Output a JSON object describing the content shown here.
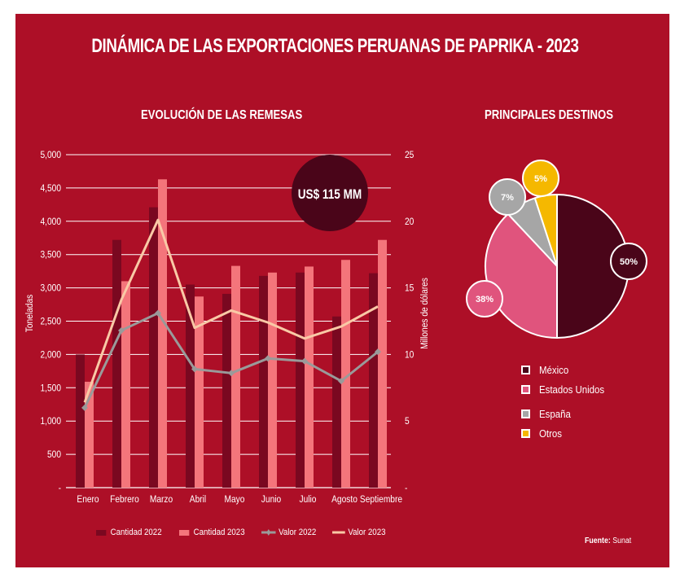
{
  "title": "DINÁMICA DE LAS EXPORTACIONES PERUANAS DE PAPRIKA - 2023",
  "colors": {
    "background": "#ad0f27",
    "cantidad_2022": "#7a0820",
    "cantidad_2023": "#f4757b",
    "valor_2022": "#9a9a9a",
    "valor_2023": "#f9c9a6",
    "badge": "#4a0519",
    "mexico": "#4a0519",
    "estados_unidos": "#e0547d",
    "espana": "#a6a6a6",
    "otros": "#f5b800"
  },
  "badge": {
    "text": "US$ 115 MM"
  },
  "source": {
    "label": "Fuente:",
    "value": "Sunat"
  },
  "chart_data": [
    {
      "type": "bar",
      "title": "EVOLUCIÓN DE LAS REMESAS",
      "xlabel": "",
      "ylabel": "Toneladas",
      "y2label": "Millones de dólares",
      "categories": [
        "Enero",
        "Febrero",
        "Marzo",
        "Abril",
        "Mayo",
        "Junio",
        "Julio",
        "Agosto",
        "Septiembre"
      ],
      "ylim": [
        0,
        5000
      ],
      "y2lim": [
        0,
        25
      ],
      "yticks": [
        "-",
        "500",
        "1,000",
        "1,500",
        "2,000",
        "2,500",
        "3,000",
        "3,500",
        "4,000",
        "4,500",
        "5,000"
      ],
      "y2ticks": [
        "-",
        "5",
        "10",
        "15",
        "20",
        "25"
      ],
      "grid": true,
      "legend_position": "bottom",
      "series": [
        {
          "name": "Cantidad 2022",
          "kind": "bar",
          "axis": "left",
          "values": [
            2000,
            3720,
            4210,
            3050,
            2910,
            3180,
            3230,
            2570,
            3220
          ]
        },
        {
          "name": "Cantidad 2023",
          "kind": "bar",
          "axis": "left",
          "values": [
            1590,
            3100,
            4630,
            2870,
            3330,
            3230,
            3320,
            3420,
            3720
          ]
        },
        {
          "name": "Valor 2022",
          "kind": "line",
          "axis": "right",
          "marker": true,
          "values": [
            6.0,
            11.8,
            13.1,
            8.9,
            8.6,
            9.7,
            9.5,
            8.0,
            10.2
          ]
        },
        {
          "name": "Valor 2023",
          "kind": "line",
          "axis": "right",
          "marker": false,
          "values": [
            6.4,
            14.1,
            20.1,
            12.0,
            13.3,
            12.4,
            11.2,
            12.1,
            13.6
          ]
        }
      ]
    },
    {
      "type": "pie",
      "title": "PRINCIPALES DESTINOS",
      "legend_position": "bottom",
      "slices": [
        {
          "label": "México",
          "value": 50,
          "text": "50%"
        },
        {
          "label": "Estados Unidos",
          "value": 38,
          "text": "38%"
        },
        {
          "label": "España",
          "value": 7,
          "text": "7%"
        },
        {
          "label": "Otros",
          "value": 5,
          "text": "5%"
        }
      ]
    }
  ]
}
